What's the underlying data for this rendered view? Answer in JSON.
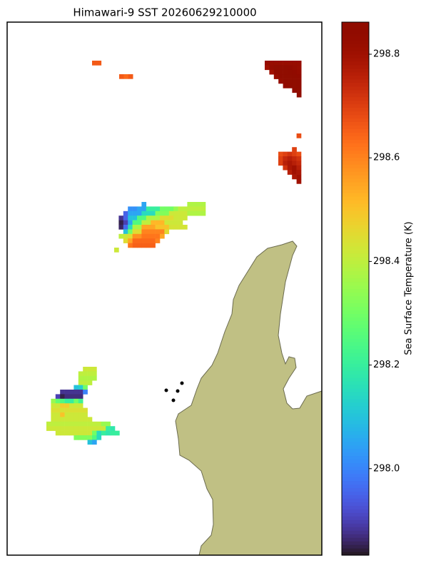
{
  "map": {
    "title": "Himawari-9 SST 20260629210000",
    "colorbar": {
      "label": "Sea Surface Temperature (K)",
      "lim": [
        297.833,
        298.862
      ],
      "ticks": [
        {
          "value": 298.0,
          "label": "298.0"
        },
        298.2,
        298.4,
        298.6,
        298.8
      ]
    },
    "patches": [
      {
        "values": [
          [
            298.66,
            298.66
          ]
        ]
      },
      {
        "values": [
          [
            298.66,
            298.64,
            298.66
          ]
        ]
      },
      {
        "values": [
          [
            298.82,
            298.82,
            298.82,
            298.82,
            298.82,
            298.82,
            298.82,
            298.82
          ],
          [
            298.8,
            298.83,
            298.86,
            298.86,
            298.85,
            298.84,
            298.83,
            298.82
          ],
          [
            null,
            298.8,
            298.84,
            298.86,
            298.86,
            298.85,
            298.84,
            298.83
          ],
          [
            null,
            null,
            298.82,
            298.85,
            298.86,
            298.86,
            298.85,
            298.84
          ],
          [
            null,
            null,
            null,
            298.83,
            298.85,
            298.86,
            298.86,
            298.85
          ],
          [
            null,
            null,
            null,
            null,
            298.84,
            298.85,
            298.86,
            298.85
          ],
          [
            null,
            null,
            null,
            null,
            null,
            null,
            298.85,
            298.86
          ],
          [
            null,
            null,
            null,
            null,
            null,
            null,
            null,
            298.86
          ]
        ]
      },
      {
        "values": [
          [
            null,
            null,
            null,
            null,
            298.68
          ],
          [
            null,
            null,
            null,
            null,
            null
          ],
          [
            null,
            null,
            null,
            null,
            null
          ],
          [
            null,
            null,
            null,
            298.7,
            null
          ],
          [
            298.68,
            298.7,
            298.72,
            298.7,
            298.68
          ],
          [
            298.7,
            298.74,
            298.76,
            298.74,
            298.72
          ],
          [
            298.7,
            298.76,
            298.78,
            298.76,
            298.74
          ],
          [
            null,
            298.72,
            298.78,
            298.8,
            298.76
          ],
          [
            null,
            null,
            298.76,
            298.8,
            298.78
          ],
          [
            null,
            null,
            null,
            298.78,
            298.8
          ],
          [
            null,
            null,
            null,
            null,
            298.8
          ]
        ]
      },
      {
        "values": [
          [
            null,
            null,
            null,
            null,
            null,
            null,
            298.05,
            null,
            null,
            null,
            null,
            null,
            null,
            null,
            null,
            null,
            298.38,
            298.38,
            298.38,
            298.38
          ],
          [
            null,
            null,
            null,
            298.02,
            298.02,
            298.05,
            298.05,
            298.2,
            298.2,
            298.2,
            298.3,
            298.3,
            298.3,
            298.35,
            298.4,
            298.4,
            298.4,
            298.4,
            298.4,
            298.4
          ],
          [
            null,
            null,
            297.95,
            298.05,
            298.05,
            298.05,
            298.15,
            298.15,
            298.15,
            298.32,
            298.32,
            298.32,
            298.42,
            298.42,
            298.42,
            298.42,
            298.38,
            298.38,
            298.38,
            298.38
          ],
          [
            null,
            297.88,
            297.95,
            298.1,
            298.1,
            298.25,
            298.25,
            298.38,
            298.38,
            298.38,
            298.45,
            298.45,
            298.45,
            298.42,
            298.42,
            298.42,
            null,
            null,
            null,
            null
          ],
          [
            null,
            297.85,
            297.9,
            298.05,
            298.25,
            298.25,
            298.4,
            298.4,
            298.52,
            298.52,
            298.52,
            298.42,
            298.42,
            298.42,
            298.42,
            null,
            null,
            null,
            null,
            null
          ],
          [
            null,
            297.86,
            297.96,
            298.15,
            298.38,
            298.38,
            298.55,
            298.55,
            298.55,
            298.5,
            298.5,
            298.5,
            298.43,
            298.43,
            298.43,
            298.43,
            null,
            null,
            null,
            null
          ],
          [
            null,
            null,
            298.1,
            298.3,
            298.45,
            298.45,
            298.6,
            298.6,
            298.6,
            298.6,
            298.6,
            298.45,
            null,
            null,
            null,
            null,
            null,
            null,
            null,
            null
          ],
          [
            null,
            298.4,
            298.42,
            298.45,
            298.58,
            298.58,
            298.62,
            298.62,
            298.62,
            298.62,
            298.55,
            null,
            null,
            null,
            null,
            null,
            null,
            null,
            null,
            null
          ],
          [
            null,
            null,
            298.45,
            298.55,
            298.64,
            298.64,
            298.64,
            298.64,
            298.64,
            298.6,
            null,
            null,
            null,
            null,
            null,
            null,
            null,
            null,
            null,
            null
          ],
          [
            null,
            null,
            null,
            298.62,
            298.65,
            298.65,
            298.65,
            298.65,
            298.65,
            null,
            null,
            null,
            null,
            null,
            null,
            null,
            null,
            null,
            null,
            null
          ],
          [
            298.42,
            null,
            null,
            null,
            null,
            null,
            null,
            null,
            null,
            null,
            null,
            null,
            null,
            null,
            null,
            null,
            null,
            null,
            null,
            null
          ]
        ]
      },
      {
        "values": [
          [
            null,
            null,
            null,
            null,
            null,
            null,
            null,
            null,
            298.42,
            298.42,
            298.42,
            null,
            null,
            null,
            null,
            null
          ],
          [
            null,
            null,
            null,
            null,
            null,
            null,
            null,
            298.4,
            298.4,
            298.4,
            298.4,
            null,
            null,
            null,
            null,
            null
          ],
          [
            null,
            null,
            null,
            null,
            null,
            null,
            null,
            298.38,
            298.38,
            298.38,
            298.38,
            null,
            null,
            null,
            null,
            null
          ],
          [
            null,
            null,
            null,
            null,
            null,
            null,
            null,
            298.4,
            298.4,
            298.4,
            null,
            null,
            null,
            null,
            null,
            null
          ],
          [
            null,
            null,
            null,
            null,
            null,
            null,
            298.1,
            298.12,
            298.3,
            null,
            null,
            null,
            null,
            null,
            null,
            null
          ],
          [
            null,
            null,
            null,
            297.88,
            297.88,
            297.88,
            297.88,
            297.88,
            298.0,
            null,
            null,
            null,
            null,
            null,
            null,
            null
          ],
          [
            null,
            null,
            297.9,
            297.85,
            297.87,
            297.87,
            297.87,
            297.87,
            null,
            null,
            null,
            null,
            null,
            null,
            null,
            null
          ],
          [
            null,
            298.35,
            298.28,
            298.25,
            298.2,
            298.2,
            298.3,
            298.22,
            null,
            null,
            null,
            null,
            null,
            null,
            null,
            null
          ],
          [
            null,
            298.42,
            298.42,
            298.48,
            298.48,
            298.42,
            298.42,
            298.42,
            null,
            null,
            null,
            null,
            null,
            null,
            null,
            null
          ],
          [
            null,
            298.44,
            298.44,
            298.44,
            298.44,
            298.44,
            298.44,
            298.44,
            298.44,
            null,
            null,
            null,
            null,
            null,
            null,
            null
          ],
          [
            null,
            298.42,
            298.42,
            298.5,
            298.42,
            298.42,
            298.42,
            298.42,
            298.42,
            null,
            null,
            null,
            null,
            null,
            null,
            null
          ],
          [
            null,
            298.42,
            298.42,
            298.42,
            298.42,
            298.42,
            298.42,
            298.42,
            298.42,
            298.42,
            null,
            null,
            null,
            null,
            null,
            null
          ],
          [
            298.4,
            298.4,
            298.4,
            298.4,
            298.4,
            298.4,
            298.4,
            298.4,
            298.4,
            298.4,
            298.4,
            298.4,
            298.35,
            298.35,
            null,
            null
          ],
          [
            298.42,
            298.42,
            298.42,
            298.42,
            298.42,
            298.42,
            298.42,
            298.42,
            298.42,
            298.42,
            298.42,
            298.42,
            298.42,
            298.2,
            298.18,
            null
          ],
          [
            null,
            null,
            298.42,
            298.42,
            298.42,
            298.42,
            298.42,
            298.42,
            298.42,
            298.42,
            298.3,
            298.15,
            298.2,
            298.18,
            298.2,
            298.2
          ],
          [
            null,
            null,
            null,
            null,
            null,
            null,
            298.32,
            298.32,
            298.32,
            298.32,
            298.25,
            298.15,
            null,
            null,
            null,
            null
          ],
          [
            null,
            null,
            null,
            null,
            null,
            null,
            null,
            null,
            null,
            298.1,
            298.05,
            null,
            null,
            null,
            null,
            null
          ]
        ]
      }
    ]
  }
}
